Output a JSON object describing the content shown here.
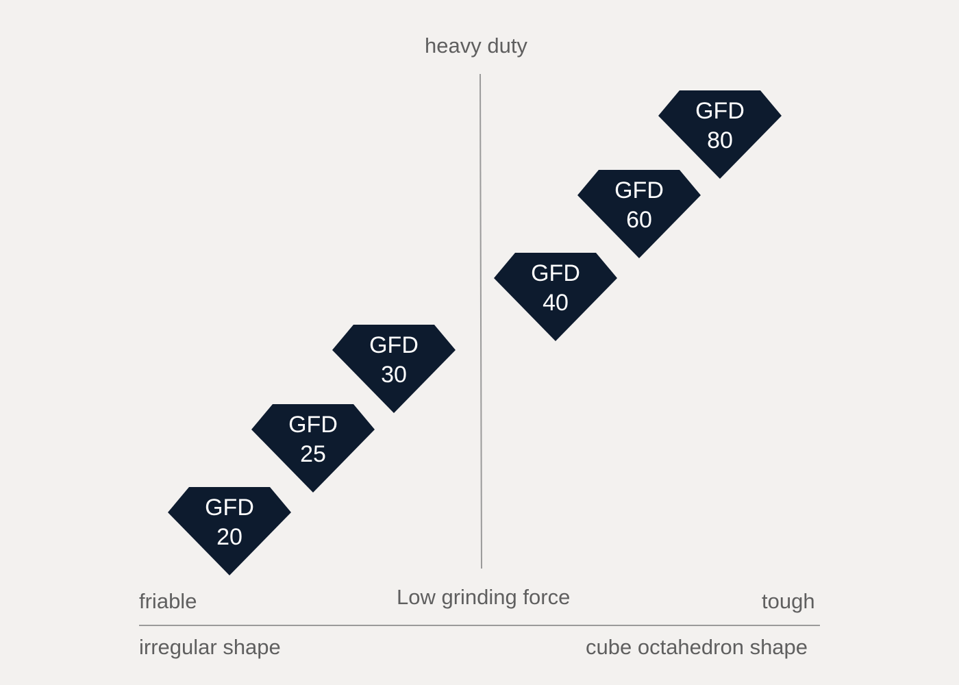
{
  "labels": {
    "top": "heavy duty",
    "bottom_left": "friable",
    "bottom_center": "Low grinding force",
    "bottom_right": "tough",
    "axis_left": "irregular shape",
    "axis_right": "cube octahedron shape"
  },
  "colors": {
    "background": "#f3f1ef",
    "gem_fill": "#0d1b2e",
    "gem_text": "#ffffff",
    "text": "#5f5f5f",
    "line": "#9a9a9a"
  },
  "gems": [
    {
      "name": "GFD",
      "grade": "20"
    },
    {
      "name": "GFD",
      "grade": "25"
    },
    {
      "name": "GFD",
      "grade": "30"
    },
    {
      "name": "GFD",
      "grade": "40"
    },
    {
      "name": "GFD",
      "grade": "60"
    },
    {
      "name": "GFD",
      "grade": "80"
    }
  ]
}
